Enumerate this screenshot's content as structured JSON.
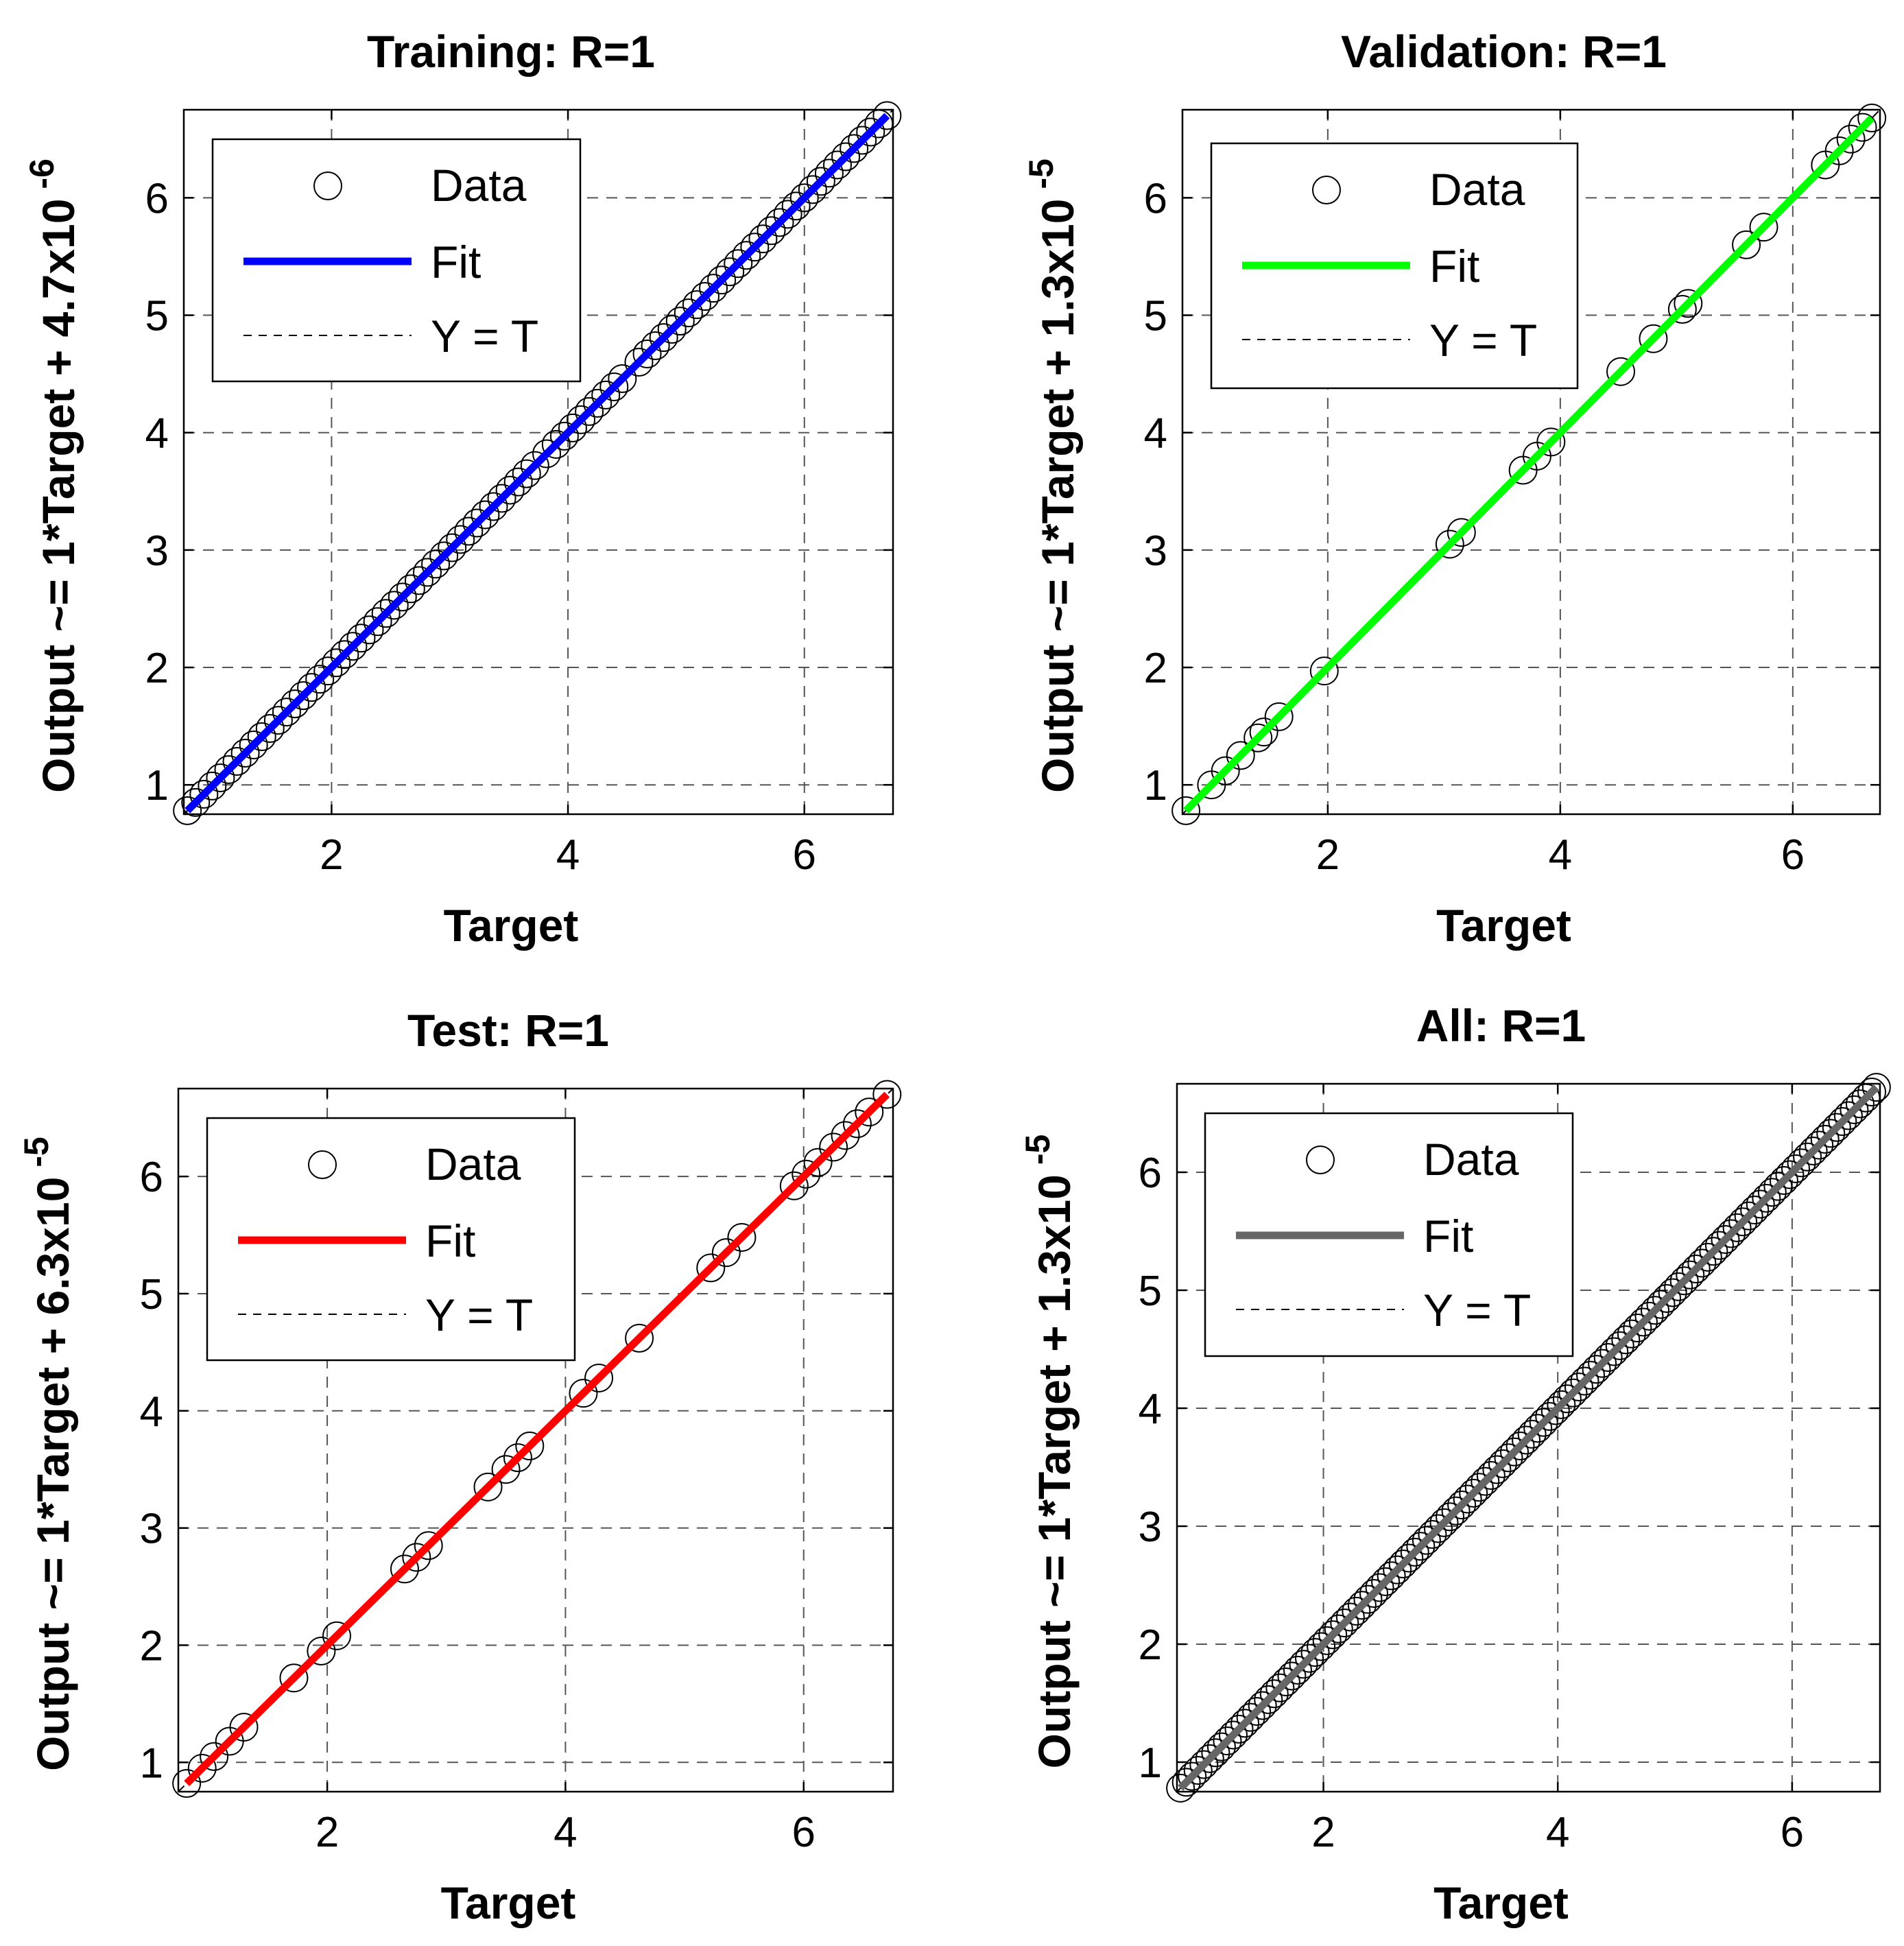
{
  "chart_data": [
    {
      "type": "scatter",
      "title": "Training: R=1",
      "xlabel": "Target",
      "ylabel": "Output ~= 1*Target + 4.7x10",
      "ylabel_exponent": "-6",
      "xlim": [
        0.75,
        6.75
      ],
      "ylim": [
        0.75,
        6.75
      ],
      "xticks": [
        2,
        4,
        6
      ],
      "yticks": [
        1,
        2,
        3,
        4,
        5,
        6
      ],
      "grid": true,
      "fit_color": "#0000ff",
      "fit_line": {
        "slope": 1,
        "intercept": 4.7e-06
      },
      "legend": {
        "data": "Data",
        "fit": "Fit",
        "identity": "Y = T",
        "placement": "top-left"
      },
      "series": [
        {
          "name": "Data",
          "x": [
            0.78,
            0.85,
            0.92,
            0.99,
            1.06,
            1.13,
            1.2,
            1.27,
            1.34,
            1.41,
            1.48,
            1.55,
            1.62,
            1.69,
            1.76,
            1.83,
            1.9,
            1.97,
            2.04,
            2.11,
            2.18,
            2.25,
            2.32,
            2.39,
            2.46,
            2.53,
            2.6,
            2.67,
            2.74,
            2.81,
            2.88,
            2.95,
            3.02,
            3.09,
            3.16,
            3.23,
            3.3,
            3.37,
            3.44,
            3.51,
            3.58,
            3.65,
            3.72,
            3.82,
            3.9,
            3.97,
            4.04,
            4.11,
            4.18,
            4.25,
            4.32,
            4.39,
            4.46,
            4.6,
            4.67,
            4.74,
            4.81,
            4.88,
            4.95,
            5.02,
            5.09,
            5.16,
            5.23,
            5.3,
            5.37,
            5.44,
            5.51,
            5.58,
            5.65,
            5.72,
            5.79,
            5.86,
            5.93,
            6.0,
            6.07,
            6.14,
            6.21,
            6.28,
            6.35,
            6.42,
            6.49,
            6.56,
            6.63,
            6.7
          ]
        }
      ]
    },
    {
      "type": "scatter",
      "title": "Validation: R=1",
      "xlabel": "Target",
      "ylabel": "Output ~= 1*Target + 1.3x10",
      "ylabel_exponent": "-5",
      "xlim": [
        0.75,
        6.75
      ],
      "ylim": [
        0.75,
        6.75
      ],
      "xticks": [
        2,
        4,
        6
      ],
      "yticks": [
        1,
        2,
        3,
        4,
        5,
        6
      ],
      "grid": true,
      "fit_color": "#00ff00",
      "fit_line": {
        "slope": 1,
        "intercept": 1.3e-05
      },
      "legend": {
        "data": "Data",
        "fit": "Fit",
        "identity": "Y = T",
        "placement": "top-left"
      },
      "series": [
        {
          "name": "Data",
          "x": [
            0.78,
            1.0,
            1.12,
            1.25,
            1.4,
            1.45,
            1.58,
            1.97,
            3.05,
            3.15,
            3.68,
            3.8,
            3.92,
            4.52,
            4.8,
            5.05,
            5.1,
            5.6,
            5.75,
            6.28,
            6.4,
            6.5,
            6.6,
            6.68
          ]
        }
      ]
    },
    {
      "type": "scatter",
      "title": "Test: R=1",
      "xlabel": "Target",
      "ylabel": "Output ~= 1*Target + 6.3x10",
      "ylabel_exponent": "-5",
      "xlim": [
        0.75,
        6.75
      ],
      "ylim": [
        0.75,
        6.75
      ],
      "xticks": [
        2,
        4,
        6
      ],
      "yticks": [
        1,
        2,
        3,
        4,
        5,
        6
      ],
      "grid": true,
      "fit_color": "#ff0000",
      "fit_line": {
        "slope": 1,
        "intercept": 6.3e-05
      },
      "legend": {
        "data": "Data",
        "fit": "Fit",
        "identity": "Y = T",
        "placement": "top-left"
      },
      "series": [
        {
          "name": "Data",
          "x": [
            0.82,
            0.95,
            1.05,
            1.18,
            1.3,
            1.72,
            1.95,
            2.08,
            2.65,
            2.75,
            2.85,
            3.35,
            3.5,
            3.6,
            3.7,
            4.15,
            4.28,
            4.62,
            5.22,
            5.35,
            5.48,
            5.92,
            6.02,
            6.12,
            6.25,
            6.35,
            6.45,
            6.55,
            6.7
          ]
        }
      ]
    },
    {
      "type": "scatter",
      "title": "All: R=1",
      "xlabel": "Target",
      "ylabel": "Output ~= 1*Target + 1.3x10",
      "ylabel_exponent": "-5",
      "xlim": [
        0.75,
        6.75
      ],
      "ylim": [
        0.75,
        6.75
      ],
      "xticks": [
        2,
        4,
        6
      ],
      "yticks": [
        1,
        2,
        3,
        4,
        5,
        6
      ],
      "grid": true,
      "fit_color": "#666666",
      "fit_line": {
        "slope": 1,
        "intercept": 1.3e-05
      },
      "legend": {
        "data": "Data",
        "fit": "Fit",
        "identity": "Y = T",
        "placement": "top-left"
      },
      "series": [
        {
          "name": "Data",
          "x": [
            0.78,
            0.83,
            0.88,
            0.93,
            0.98,
            1.03,
            1.08,
            1.13,
            1.18,
            1.23,
            1.28,
            1.33,
            1.38,
            1.43,
            1.48,
            1.53,
            1.58,
            1.63,
            1.68,
            1.73,
            1.78,
            1.83,
            1.88,
            1.93,
            1.98,
            2.03,
            2.08,
            2.13,
            2.18,
            2.23,
            2.28,
            2.33,
            2.38,
            2.43,
            2.48,
            2.53,
            2.58,
            2.63,
            2.68,
            2.73,
            2.78,
            2.83,
            2.88,
            2.93,
            2.98,
            3.03,
            3.08,
            3.13,
            3.18,
            3.23,
            3.28,
            3.33,
            3.38,
            3.43,
            3.48,
            3.53,
            3.58,
            3.63,
            3.68,
            3.73,
            3.78,
            3.83,
            3.88,
            3.93,
            3.98,
            4.03,
            4.08,
            4.13,
            4.18,
            4.23,
            4.28,
            4.33,
            4.38,
            4.43,
            4.48,
            4.53,
            4.58,
            4.63,
            4.68,
            4.73,
            4.78,
            4.83,
            4.88,
            4.93,
            4.98,
            5.03,
            5.08,
            5.13,
            5.18,
            5.23,
            5.28,
            5.33,
            5.38,
            5.43,
            5.48,
            5.53,
            5.58,
            5.63,
            5.68,
            5.73,
            5.78,
            5.83,
            5.88,
            5.93,
            5.98,
            6.03,
            6.08,
            6.13,
            6.18,
            6.23,
            6.28,
            6.33,
            6.38,
            6.43,
            6.48,
            6.53,
            6.58,
            6.63,
            6.68,
            6.72
          ]
        }
      ]
    }
  ]
}
